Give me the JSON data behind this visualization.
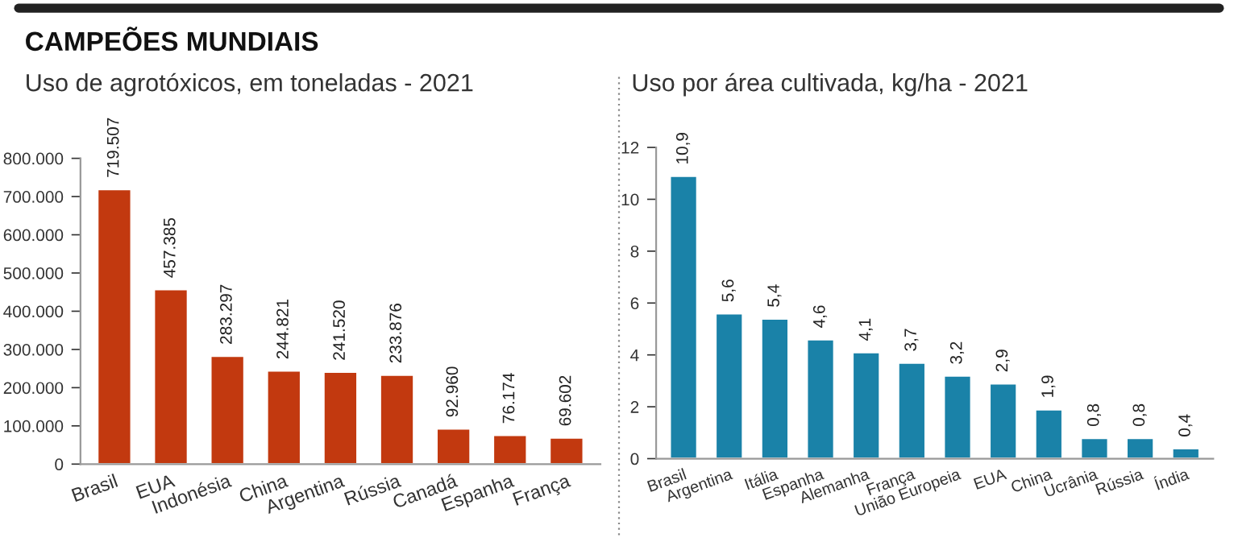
{
  "chart_data": [
    {
      "type": "bar",
      "title": "CAMPEÕES MUNDIAIS",
      "subtitle": "Uso de agrotóxicos, em toneladas - 2021",
      "categories": [
        "Brasil",
        "EUA",
        "Indonésia",
        "China",
        "Argentina",
        "Rússia",
        "Canadá",
        "Espanha",
        "França"
      ],
      "values": [
        719507,
        457385,
        283297,
        244821,
        241520,
        233876,
        92960,
        76174,
        69602
      ],
      "value_labels": [
        "719.507",
        "457.385",
        "283.297",
        "244.821",
        "241.520",
        "233.876",
        "92.960",
        "76.174",
        "69.602"
      ],
      "color": "#c2390f",
      "ylim": [
        0,
        800000
      ],
      "yticks": [
        0,
        {
          "value": 100000,
          "label": "100.000"
        },
        {
          "value": 200000,
          "label": "200.000"
        },
        {
          "value": 300000,
          "label": "300.000"
        },
        {
          "value": 400000,
          "label": "400.000"
        },
        {
          "value": 500000,
          "label": "500.000"
        },
        {
          "value": 600000,
          "label": "600.000"
        },
        {
          "value": 700000,
          "label": "700.000"
        },
        {
          "value": 800000,
          "label": "800.000"
        }
      ],
      "grid": false,
      "legend": false
    },
    {
      "type": "bar",
      "title": "Uso por área cultivada, kg/ha - 2021",
      "categories": [
        "Brasil",
        "Argentina",
        "Itália",
        "Espanha",
        "Alemanha",
        "França",
        "União Europeia",
        "EUA",
        "China",
        "Ucrânia",
        "Rússia",
        "Índia"
      ],
      "values": [
        10.9,
        5.6,
        5.4,
        4.6,
        4.1,
        3.7,
        3.2,
        2.9,
        1.9,
        0.8,
        0.8,
        0.4
      ],
      "value_labels": [
        "10,9",
        "5,6",
        "5,4",
        "4,6",
        "4,1",
        "3,7",
        "3,2",
        "2,9",
        "1,9",
        "0,8",
        "0,8",
        "0,4"
      ],
      "color": "#1a82a8",
      "ylim": [
        0,
        12
      ],
      "yticks": [
        0,
        2,
        4,
        6,
        8,
        10,
        12
      ],
      "grid": false,
      "legend": false
    }
  ]
}
